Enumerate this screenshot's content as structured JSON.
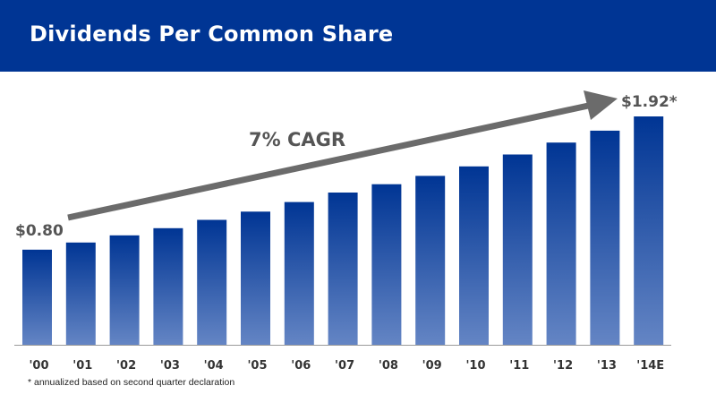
{
  "header": {
    "title": "Dividends Per Common Share"
  },
  "chart_data": {
    "type": "bar",
    "title": "Dividends Per Common Share",
    "categories": [
      "'00",
      "'01",
      "'02",
      "'03",
      "'04",
      "'05",
      "'06",
      "'07",
      "'08",
      "'09",
      "'10",
      "'11",
      "'12",
      "'13",
      "'14E"
    ],
    "values": [
      0.8,
      0.86,
      0.92,
      0.98,
      1.05,
      1.12,
      1.2,
      1.28,
      1.35,
      1.42,
      1.5,
      1.6,
      1.7,
      1.8,
      1.92
    ],
    "data_labels": {
      "first": "$0.80",
      "last": "$1.92*"
    },
    "annotation": "7% CAGR",
    "ylim": [
      0,
      1.92
    ],
    "grid": false,
    "colors": {
      "bar_top": "#003594",
      "bar_bottom": "#6485c4",
      "arrow": "#6b6b6b",
      "axis": "#9a9a9a"
    }
  },
  "footnote": "* annualized based on second quarter declaration"
}
